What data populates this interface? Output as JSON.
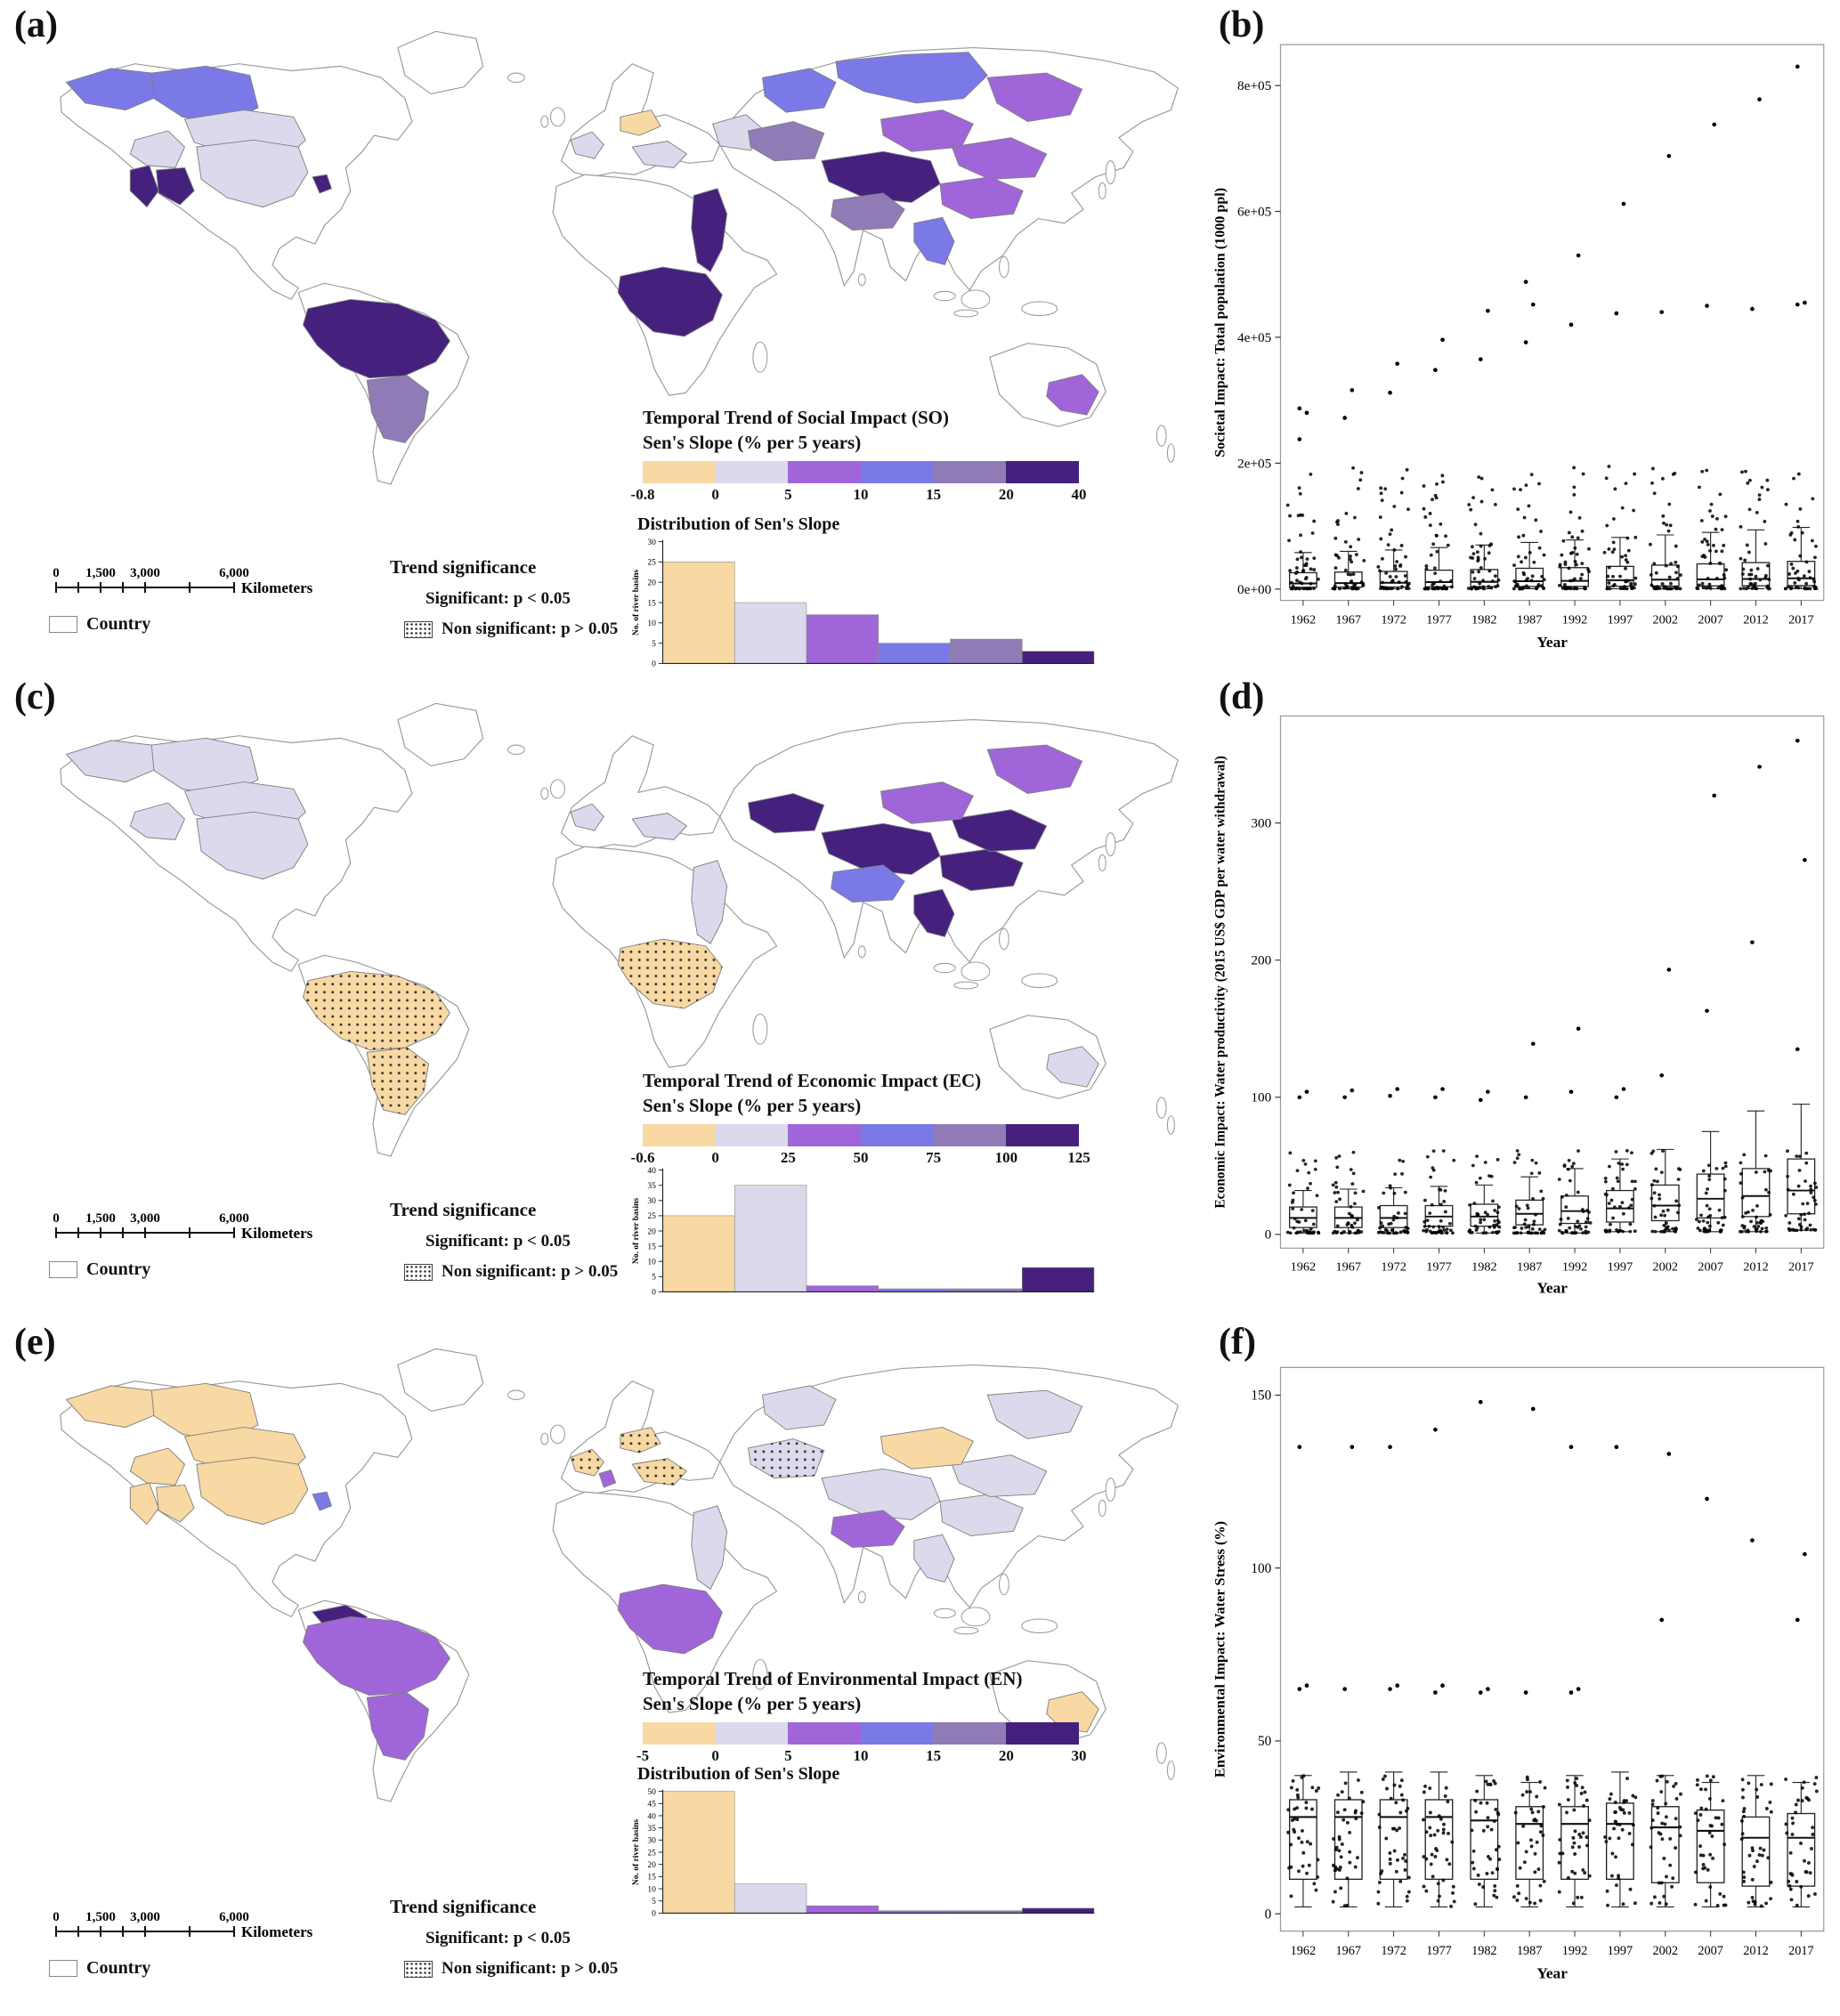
{
  "panel_labels": [
    "(a)",
    "(b)",
    "(c)",
    "(d)",
    "(e)",
    "(f)"
  ],
  "palette": {
    "negative": "#F8D8A3",
    "bin1": "#DBD9EB",
    "bin2": "#A066D9",
    "bin3": "#7B79E8",
    "bin4": "#8F7CB7",
    "bin5": "#45217D",
    "outline": "#9B9B9B",
    "region_outline": "#7F7F7F"
  },
  "chart_data": [
    {
      "id": "a",
      "type": "choropleth_map_with_histogram",
      "title": "Temporal Trend of Social Impact (SO)",
      "subtitle": "Sen's Slope (% per 5 years)",
      "colorbar_labels": [
        "-0.8",
        "0",
        "5",
        "10",
        "15",
        "20",
        "40"
      ],
      "histogram": {
        "title": "Distribution of Sen's Slope",
        "ylabel": "No. of river basins",
        "yticks": [
          0,
          5,
          10,
          15,
          20,
          25,
          30
        ],
        "ymax": 30,
        "bin_labels": [
          "-0.8 to 0",
          "0 to 5",
          "5 to 10",
          "10 to 15",
          "15 to 20",
          "20 to 40"
        ],
        "values": [
          25,
          15,
          12,
          5,
          6,
          3
        ]
      },
      "scalebar": {
        "labels": [
          "0",
          "1,500",
          "3,000",
          "6,000"
        ],
        "unit": "Kilometers"
      },
      "country_label": "Country",
      "sig_title": "Trend significance",
      "sig_label": "Significant: p < 0.05",
      "nonsig_label": "Non significant: p > 0.05",
      "regions": [
        {
          "shape": "yukon",
          "color": "bin3"
        },
        {
          "shape": "mackenzie",
          "color": "bin3"
        },
        {
          "shape": "nelson",
          "color": "bin1"
        },
        {
          "shape": "columbia",
          "color": "bin1"
        },
        {
          "shape": "california",
          "color": "bin5"
        },
        {
          "shape": "colorado",
          "color": "bin5"
        },
        {
          "shape": "mississippi",
          "color": "bin1"
        },
        {
          "shape": "eastus",
          "color": "bin5"
        },
        {
          "shape": "amazon",
          "color": "bin5"
        },
        {
          "shape": "parana",
          "color": "bin4"
        },
        {
          "shape": "westeurope",
          "color": "bin1"
        },
        {
          "shape": "baltic",
          "color": "negative"
        },
        {
          "shape": "danube",
          "color": "bin1"
        },
        {
          "shape": "volga",
          "color": "bin1"
        },
        {
          "shape": "nile",
          "color": "bin5"
        },
        {
          "shape": "congo",
          "color": "bin5"
        },
        {
          "shape": "ob",
          "color": "bin3"
        },
        {
          "shape": "lena",
          "color": "bin3"
        },
        {
          "shape": "amur",
          "color": "bin2"
        },
        {
          "shape": "mongolia",
          "color": "bin2"
        },
        {
          "shape": "yellow",
          "color": "bin2"
        },
        {
          "shape": "centralasia",
          "color": "bin4"
        },
        {
          "shape": "tibet",
          "color": "bin5"
        },
        {
          "shape": "yangtze",
          "color": "bin2"
        },
        {
          "shape": "ganges",
          "color": "bin4"
        },
        {
          "shape": "mekong",
          "color": "bin3"
        },
        {
          "shape": "murray",
          "color": "bin2"
        }
      ]
    },
    {
      "id": "b",
      "type": "boxplot",
      "ylabel": "Societal Impact: Total population (1000 ppl)",
      "xlabel": "Year",
      "years": [
        "1962",
        "1967",
        "1972",
        "1977",
        "1982",
        "1987",
        "1992",
        "1997",
        "2002",
        "2007",
        "2012",
        "2017"
      ],
      "ytick_labels": [
        "0e+00",
        "2e+05",
        "4e+05",
        "6e+05",
        "8e+05"
      ],
      "ytick_values": [
        0,
        200000,
        400000,
        600000,
        800000
      ],
      "ymin": -18000,
      "ymax": 865000,
      "boxes": [
        [
          400,
          2800,
          9000,
          26000,
          58000
        ],
        [
          400,
          3000,
          9500,
          27000,
          60000
        ],
        [
          450,
          3200,
          10000,
          28000,
          62000
        ],
        [
          450,
          3500,
          11000,
          30000,
          66000
        ],
        [
          500,
          3800,
          11500,
          31000,
          70000
        ],
        [
          500,
          4000,
          12500,
          33000,
          74000
        ],
        [
          500,
          4200,
          13000,
          34000,
          78000
        ],
        [
          550,
          4500,
          14000,
          36000,
          82000
        ],
        [
          550,
          4800,
          15000,
          38000,
          86000
        ],
        [
          600,
          5000,
          15500,
          40000,
          90000
        ],
        [
          600,
          5200,
          16000,
          42000,
          94000
        ],
        [
          650,
          5500,
          17000,
          44000,
          98000
        ]
      ],
      "outliers": [
        [
          238000,
          280000,
          287000
        ],
        [
          272000,
          316000
        ],
        [
          312000,
          358000
        ],
        [
          348000,
          396000
        ],
        [
          365000,
          442000
        ],
        [
          392000,
          452000,
          488000
        ],
        [
          420000,
          530000
        ],
        [
          438000,
          612000
        ],
        [
          440000,
          688000
        ],
        [
          450000,
          738000
        ],
        [
          445000,
          778000
        ],
        [
          452000,
          455000,
          830000
        ]
      ],
      "points": {
        "n": 48,
        "max": 195000,
        "dist": "low",
        "seed": 11
      }
    },
    {
      "id": "c",
      "type": "choropleth_map_with_histogram",
      "title": "Temporal Trend of Economic Impact (EC)",
      "subtitle": "Sen's Slope (% per 5 years)",
      "colorbar_labels": [
        "-0.6",
        "0",
        "25",
        "50",
        "75",
        "100",
        "125"
      ],
      "histogram": {
        "title": "",
        "ylabel": "No. of river basins",
        "yticks": [
          0,
          5,
          10,
          15,
          20,
          25,
          30,
          35,
          40
        ],
        "ymax": 40,
        "bin_labels": [
          "-0.6 to 0",
          "0 to 25",
          "25 to 50",
          "50 to 75",
          "75 to 100",
          "100 to 125"
        ],
        "values": [
          25,
          35,
          2,
          1,
          1,
          8
        ]
      },
      "scalebar": {
        "labels": [
          "0",
          "1,500",
          "3,000",
          "6,000"
        ],
        "unit": "Kilometers"
      },
      "country_label": "Country",
      "sig_title": "Trend significance",
      "sig_label": "Significant: p < 0.05",
      "nonsig_label": "Non significant: p > 0.05",
      "regions": [
        {
          "shape": "yukon",
          "color": "bin1"
        },
        {
          "shape": "mackenzie",
          "color": "bin1"
        },
        {
          "shape": "nelson",
          "color": "bin1"
        },
        {
          "shape": "columbia",
          "color": "bin1"
        },
        {
          "shape": "mississippi",
          "color": "bin1"
        },
        {
          "shape": "amazon",
          "color": "negative",
          "dots": true
        },
        {
          "shape": "parana",
          "color": "negative",
          "dots": true
        },
        {
          "shape": "congo",
          "color": "negative",
          "dots": true
        },
        {
          "shape": "nile",
          "color": "bin1"
        },
        {
          "shape": "westeurope",
          "color": "bin1"
        },
        {
          "shape": "danube",
          "color": "bin1"
        },
        {
          "shape": "centralasia",
          "color": "bin5"
        },
        {
          "shape": "tibet",
          "color": "bin5"
        },
        {
          "shape": "yangtze",
          "color": "bin5"
        },
        {
          "shape": "yellow",
          "color": "bin5"
        },
        {
          "shape": "mekong",
          "color": "bin5"
        },
        {
          "shape": "mongolia",
          "color": "bin2"
        },
        {
          "shape": "amur",
          "color": "bin2"
        },
        {
          "shape": "ganges",
          "color": "bin3"
        },
        {
          "shape": "murray",
          "color": "bin1"
        }
      ]
    },
    {
      "id": "d",
      "type": "boxplot",
      "ylabel": "Economic Impact: Water productivity (2015 US$ GDP per water withdrawal)",
      "xlabel": "Year",
      "years": [
        "1962",
        "1967",
        "1972",
        "1977",
        "1982",
        "1987",
        "1992",
        "1997",
        "2002",
        "2007",
        "2012",
        "2017"
      ],
      "ytick_labels": [
        "0",
        "100",
        "200",
        "300"
      ],
      "ytick_values": [
        0,
        100,
        200,
        300
      ],
      "ymin": -10,
      "ymax": 378,
      "boxes": [
        [
          1,
          5,
          12,
          20,
          32
        ],
        [
          1,
          5,
          12,
          20,
          33
        ],
        [
          1,
          5,
          12,
          21,
          34
        ],
        [
          1,
          6,
          13,
          21,
          35
        ],
        [
          1,
          6,
          13,
          22,
          36
        ],
        [
          1,
          7,
          15,
          25,
          42
        ],
        [
          1,
          8,
          17,
          28,
          48
        ],
        [
          2,
          9,
          19,
          32,
          55
        ],
        [
          2,
          10,
          21,
          36,
          62
        ],
        [
          2,
          12,
          26,
          44,
          75
        ],
        [
          2,
          13,
          28,
          48,
          90
        ],
        [
          3,
          15,
          32,
          55,
          95
        ]
      ],
      "outliers": [
        [
          100,
          104
        ],
        [
          100,
          105
        ],
        [
          101,
          106
        ],
        [
          100,
          106
        ],
        [
          98,
          104
        ],
        [
          100,
          139
        ],
        [
          104,
          150
        ],
        [
          100,
          106
        ],
        [
          116,
          193
        ],
        [
          163,
          320
        ],
        [
          213,
          341
        ],
        [
          135,
          273,
          360
        ]
      ],
      "points": {
        "n": 44,
        "max": 62,
        "dist": "low",
        "seed": 23
      }
    },
    {
      "id": "e",
      "type": "choropleth_map_with_histogram",
      "title": "Temporal Trend of Environmental Impact (EN)",
      "subtitle": "Sen's Slope (% per 5 years)",
      "colorbar_labels": [
        "-5",
        "0",
        "5",
        "10",
        "15",
        "20",
        "30"
      ],
      "histogram": {
        "title": "Distribution of Sen's Slope",
        "ylabel": "No. of river basins",
        "yticks": [
          0,
          5,
          10,
          15,
          20,
          25,
          30,
          35,
          40,
          45,
          50
        ],
        "ymax": 50,
        "bin_labels": [
          "-5 to 0",
          "0 to 5",
          "5 to 10",
          "10 to 15",
          "15 to 20",
          "20 to 30"
        ],
        "values": [
          50,
          12,
          3,
          1,
          1,
          2
        ]
      },
      "scalebar": {
        "labels": [
          "0",
          "1,500",
          "3,000",
          "6,000"
        ],
        "unit": "Kilometers"
      },
      "country_label": "Country",
      "sig_title": "Trend significance",
      "sig_label": "Significant: p < 0.05",
      "nonsig_label": "Non significant: p > 0.05",
      "regions": [
        {
          "shape": "yukon",
          "color": "negative"
        },
        {
          "shape": "mackenzie",
          "color": "negative"
        },
        {
          "shape": "nelson",
          "color": "negative"
        },
        {
          "shape": "columbia",
          "color": "negative"
        },
        {
          "shape": "california",
          "color": "negative"
        },
        {
          "shape": "colorado",
          "color": "negative"
        },
        {
          "shape": "mississippi",
          "color": "negative"
        },
        {
          "shape": "eastus",
          "color": "bin3"
        },
        {
          "shape": "orinoco",
          "color": "bin5"
        },
        {
          "shape": "amazon",
          "color": "bin2"
        },
        {
          "shape": "parana",
          "color": "bin2"
        },
        {
          "shape": "congo",
          "color": "bin2"
        },
        {
          "shape": "nile",
          "color": "bin1"
        },
        {
          "shape": "westeurope",
          "color": "negative",
          "dots": true
        },
        {
          "shape": "baltic",
          "color": "negative",
          "dots": true
        },
        {
          "shape": "danube",
          "color": "negative",
          "dots": true
        },
        {
          "shape": "rhone",
          "color": "bin2"
        },
        {
          "shape": "ob",
          "color": "bin1"
        },
        {
          "shape": "centralasia",
          "color": "bin1",
          "dots": true
        },
        {
          "shape": "tibet",
          "color": "bin1"
        },
        {
          "shape": "yangtze",
          "color": "bin1"
        },
        {
          "shape": "yellow",
          "color": "bin1"
        },
        {
          "shape": "amur",
          "color": "bin1"
        },
        {
          "shape": "mongolia",
          "color": "negative"
        },
        {
          "shape": "ganges",
          "color": "bin2"
        },
        {
          "shape": "mekong",
          "color": "bin1"
        },
        {
          "shape": "murray",
          "color": "negative"
        }
      ]
    },
    {
      "id": "f",
      "type": "boxplot",
      "ylabel": "Environmental Impact: Water Stress (%)",
      "xlabel": "Year",
      "years": [
        "1962",
        "1967",
        "1972",
        "1977",
        "1982",
        "1987",
        "1992",
        "1997",
        "2002",
        "2007",
        "2012",
        "2017"
      ],
      "ytick_labels": [
        "0",
        "50",
        "100",
        "150"
      ],
      "ytick_values": [
        0,
        50,
        100,
        150
      ],
      "ymin": -5,
      "ymax": 158,
      "boxes": [
        [
          2,
          10,
          28,
          33,
          40
        ],
        [
          2,
          10,
          28,
          33,
          41
        ],
        [
          2,
          10,
          28,
          33,
          41
        ],
        [
          2,
          10,
          28,
          33,
          41
        ],
        [
          2,
          10,
          27,
          33,
          40
        ],
        [
          2,
          10,
          26,
          31,
          38
        ],
        [
          2,
          10,
          26,
          31,
          40
        ],
        [
          2,
          10,
          26,
          32,
          41
        ],
        [
          2,
          9,
          25,
          31,
          40
        ],
        [
          2,
          9,
          24,
          30,
          38
        ],
        [
          2,
          8,
          22,
          28,
          40
        ],
        [
          2,
          8,
          22,
          29,
          38
        ]
      ],
      "outliers": [
        [
          65,
          66,
          135
        ],
        [
          65,
          135
        ],
        [
          65,
          66,
          135
        ],
        [
          64,
          66,
          140
        ],
        [
          64,
          65,
          148
        ],
        [
          64,
          146
        ],
        [
          64,
          65,
          135
        ],
        [
          135
        ],
        [
          85,
          133
        ],
        [
          120
        ],
        [
          108
        ],
        [
          85,
          104
        ]
      ],
      "points": {
        "n": 40,
        "max": 40,
        "dist": "uniform",
        "seed": 37
      }
    }
  ]
}
